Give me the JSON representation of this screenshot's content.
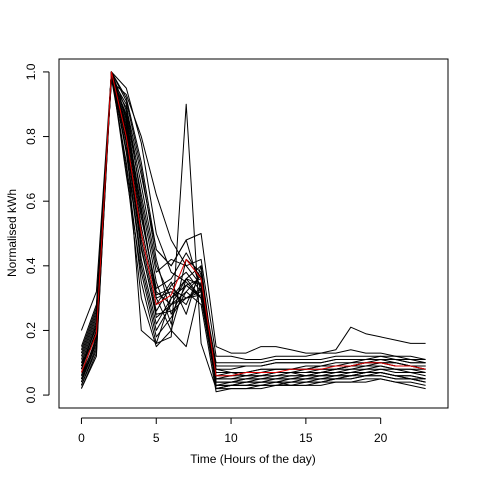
{
  "chart_data": {
    "type": "line",
    "title": "",
    "xlabel": "Time (Hours of the day)",
    "ylabel": "Normalised kWh",
    "xlim": [
      -1.5,
      24.5
    ],
    "ylim": [
      -0.04,
      1.04
    ],
    "xticks": [
      0,
      5,
      10,
      15,
      20
    ],
    "yticks": [
      0.0,
      0.2,
      0.4,
      0.6,
      0.8,
      1.0
    ],
    "grid": false,
    "legend": "none",
    "x": [
      0,
      1,
      2,
      3,
      4,
      5,
      6,
      7,
      8,
      9,
      10,
      11,
      12,
      13,
      14,
      15,
      16,
      17,
      18,
      19,
      20,
      21,
      22,
      23
    ],
    "series_color_default": "#000000",
    "highlight_color": "#dd0000",
    "series": [
      {
        "values": [
          0.2,
          0.32,
          1.0,
          0.92,
          0.72,
          0.45,
          0.4,
          0.48,
          0.5,
          0.15,
          0.13,
          0.13,
          0.15,
          0.15,
          0.14,
          0.13,
          0.13,
          0.14,
          0.21,
          0.19,
          0.18,
          0.17,
          0.16,
          0.16
        ]
      },
      {
        "values": [
          0.1,
          0.18,
          1.0,
          0.95,
          0.78,
          0.5,
          0.38,
          0.35,
          0.3,
          0.08,
          0.07,
          0.06,
          0.06,
          0.07,
          0.07,
          0.06,
          0.07,
          0.08,
          0.09,
          0.1,
          0.11,
          0.1,
          0.09,
          0.08
        ]
      },
      {
        "values": [
          0.05,
          0.16,
          0.99,
          0.8,
          0.2,
          0.16,
          0.18,
          0.9,
          0.16,
          0.02,
          0.03,
          0.03,
          0.04,
          0.04,
          0.03,
          0.04,
          0.04,
          0.05,
          0.06,
          0.07,
          0.07,
          0.06,
          0.05,
          0.04
        ]
      },
      {
        "values": [
          0.03,
          0.15,
          1.0,
          0.7,
          0.3,
          0.15,
          0.2,
          0.36,
          0.4,
          0.02,
          0.03,
          0.03,
          0.03,
          0.03,
          0.04,
          0.04,
          0.04,
          0.05,
          0.05,
          0.06,
          0.07,
          0.06,
          0.05,
          0.04
        ]
      },
      {
        "values": [
          0.08,
          0.22,
          1.0,
          0.85,
          0.55,
          0.32,
          0.28,
          0.3,
          0.32,
          0.05,
          0.05,
          0.05,
          0.06,
          0.07,
          0.07,
          0.08,
          0.08,
          0.08,
          0.09,
          0.1,
          0.1,
          0.09,
          0.09,
          0.08
        ]
      },
      {
        "values": [
          0.12,
          0.25,
          0.98,
          0.9,
          0.6,
          0.35,
          0.22,
          0.42,
          0.38,
          0.06,
          0.07,
          0.07,
          0.08,
          0.08,
          0.08,
          0.09,
          0.09,
          0.1,
          0.1,
          0.11,
          0.11,
          0.11,
          0.1,
          0.1
        ]
      },
      {
        "values": [
          0.02,
          0.13,
          0.99,
          0.75,
          0.4,
          0.2,
          0.28,
          0.32,
          0.37,
          0.02,
          0.03,
          0.04,
          0.04,
          0.04,
          0.04,
          0.05,
          0.05,
          0.05,
          0.06,
          0.06,
          0.06,
          0.05,
          0.05,
          0.04
        ]
      },
      {
        "values": [
          0.06,
          0.2,
          1.0,
          0.88,
          0.65,
          0.4,
          0.3,
          0.34,
          0.3,
          0.04,
          0.04,
          0.04,
          0.05,
          0.05,
          0.06,
          0.06,
          0.06,
          0.07,
          0.07,
          0.08,
          0.08,
          0.08,
          0.07,
          0.07
        ]
      },
      {
        "values": [
          0.15,
          0.28,
          0.97,
          0.93,
          0.8,
          0.62,
          0.48,
          0.4,
          0.42,
          0.12,
          0.12,
          0.11,
          0.11,
          0.12,
          0.12,
          0.12,
          0.13,
          0.13,
          0.14,
          0.13,
          0.13,
          0.12,
          0.12,
          0.11
        ]
      },
      {
        "values": [
          0.04,
          0.17,
          1.0,
          0.78,
          0.45,
          0.25,
          0.26,
          0.3,
          0.33,
          0.03,
          0.03,
          0.03,
          0.03,
          0.04,
          0.04,
          0.04,
          0.05,
          0.05,
          0.05,
          0.06,
          0.06,
          0.05,
          0.05,
          0.05
        ]
      },
      {
        "values": [
          0.09,
          0.21,
          0.99,
          0.82,
          0.5,
          0.28,
          0.35,
          0.25,
          0.4,
          0.05,
          0.06,
          0.06,
          0.07,
          0.07,
          0.07,
          0.07,
          0.08,
          0.08,
          0.09,
          0.09,
          0.1,
          0.09,
          0.09,
          0.09
        ]
      },
      {
        "values": [
          0.07,
          0.19,
          1.0,
          0.86,
          0.58,
          0.3,
          0.32,
          0.28,
          0.38,
          0.04,
          0.04,
          0.05,
          0.05,
          0.05,
          0.05,
          0.06,
          0.06,
          0.06,
          0.07,
          0.07,
          0.08,
          0.07,
          0.07,
          0.06
        ]
      },
      {
        "values": [
          0.11,
          0.24,
          0.98,
          0.72,
          0.35,
          0.16,
          0.3,
          0.36,
          0.3,
          0.08,
          0.08,
          0.09,
          0.09,
          0.1,
          0.1,
          0.1,
          0.1,
          0.11,
          0.11,
          0.11,
          0.12,
          0.11,
          0.11,
          0.1
        ]
      },
      {
        "values": [
          0.03,
          0.14,
          1.0,
          0.91,
          0.7,
          0.42,
          0.25,
          0.34,
          0.36,
          0.02,
          0.02,
          0.02,
          0.03,
          0.03,
          0.03,
          0.03,
          0.04,
          0.04,
          0.04,
          0.05,
          0.05,
          0.04,
          0.04,
          0.03
        ]
      },
      {
        "values": [
          0.13,
          0.26,
          0.99,
          0.84,
          0.52,
          0.3,
          0.2,
          0.15,
          0.35,
          0.1,
          0.1,
          0.1,
          0.1,
          0.11,
          0.11,
          0.11,
          0.11,
          0.12,
          0.12,
          0.12,
          0.12,
          0.12,
          0.11,
          0.11
        ]
      },
      {
        "values": [
          0.05,
          0.18,
          1.0,
          0.79,
          0.48,
          0.26,
          0.34,
          0.38,
          0.32,
          0.04,
          0.04,
          0.05,
          0.05,
          0.06,
          0.06,
          0.06,
          0.07,
          0.07,
          0.08,
          0.08,
          0.09,
          0.08,
          0.08,
          0.07
        ]
      },
      {
        "values": [
          0.1,
          0.23,
          0.98,
          0.87,
          0.62,
          0.38,
          0.42,
          0.4,
          0.34,
          0.06,
          0.06,
          0.07,
          0.07,
          0.08,
          0.08,
          0.08,
          0.09,
          0.09,
          0.1,
          0.1,
          0.1,
          0.1,
          0.09,
          0.09
        ]
      },
      {
        "values": [
          0.02,
          0.12,
          1.0,
          0.68,
          0.38,
          0.18,
          0.24,
          0.32,
          0.28,
          0.01,
          0.02,
          0.02,
          0.02,
          0.03,
          0.03,
          0.03,
          0.03,
          0.04,
          0.04,
          0.04,
          0.05,
          0.04,
          0.03,
          0.02
        ]
      },
      {
        "values": [
          0.08,
          0.2,
          0.99,
          0.83,
          0.55,
          0.33,
          0.36,
          0.44,
          0.36,
          0.05,
          0.05,
          0.06,
          0.06,
          0.06,
          0.07,
          0.07,
          0.07,
          0.08,
          0.08,
          0.09,
          0.09,
          0.08,
          0.08,
          0.08
        ]
      },
      {
        "values": [
          0.06,
          0.17,
          1.0,
          0.76,
          0.42,
          0.22,
          0.3,
          0.34,
          0.3,
          0.03,
          0.04,
          0.04,
          0.04,
          0.05,
          0.05,
          0.05,
          0.06,
          0.06,
          0.06,
          0.07,
          0.07,
          0.06,
          0.06,
          0.05
        ]
      },
      {
        "values": [
          0.14,
          0.27,
          0.97,
          0.89,
          0.68,
          0.45,
          0.4,
          0.48,
          0.32,
          0.09,
          0.09,
          0.09,
          0.09,
          0.1,
          0.1,
          0.1,
          0.1,
          0.11,
          0.11,
          0.11,
          0.11,
          0.11,
          0.1,
          0.1
        ]
      },
      {
        "values": [
          0.04,
          0.16,
          1.0,
          0.81,
          0.46,
          0.24,
          0.28,
          0.36,
          0.34,
          0.03,
          0.03,
          0.04,
          0.04,
          0.04,
          0.05,
          0.05,
          0.05,
          0.06,
          0.06,
          0.07,
          0.07,
          0.06,
          0.06,
          0.05
        ]
      },
      {
        "values": [
          0.09,
          0.22,
          0.99,
          0.86,
          0.57,
          0.31,
          0.33,
          0.3,
          0.31,
          0.07,
          0.07,
          0.07,
          0.08,
          0.08,
          0.08,
          0.08,
          0.09,
          0.09,
          0.09,
          0.1,
          0.1,
          0.1,
          0.09,
          0.09
        ]
      },
      {
        "values": [
          0.07,
          0.19,
          1.0,
          0.8,
          0.5,
          0.28,
          0.31,
          0.42,
          0.36,
          0.06,
          0.06,
          0.07,
          0.07,
          0.07,
          0.08,
          0.08,
          0.08,
          0.09,
          0.09,
          0.1,
          0.1,
          0.09,
          0.09,
          0.08
        ],
        "highlight": true
      }
    ]
  }
}
